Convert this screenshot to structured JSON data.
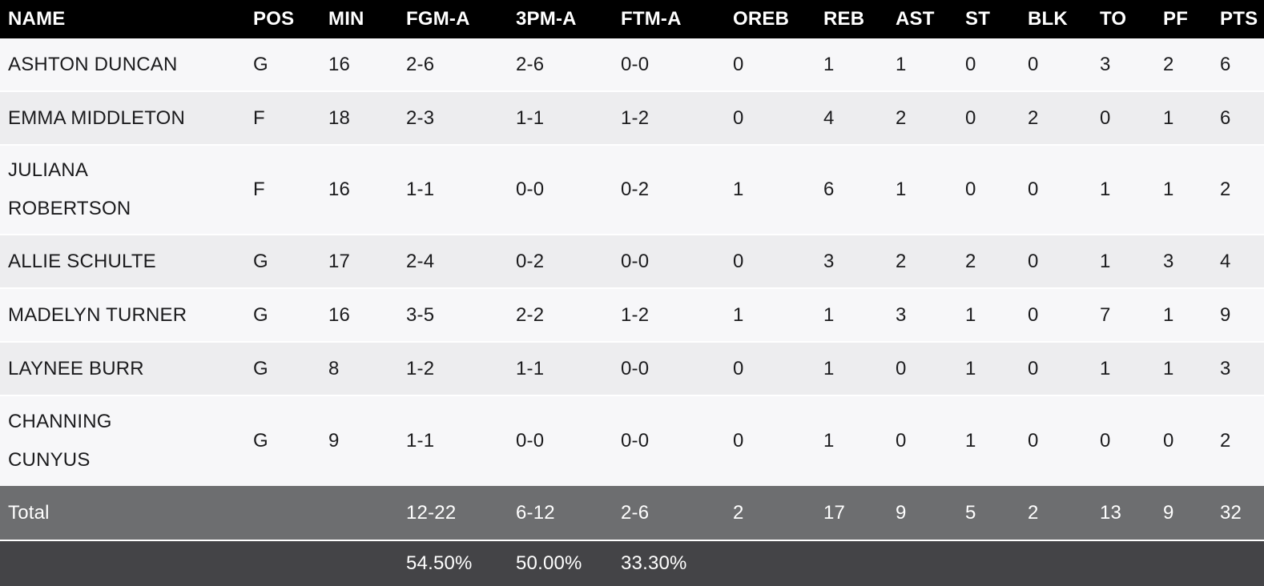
{
  "table": {
    "columns": [
      {
        "key": "name",
        "label": "NAME"
      },
      {
        "key": "pos",
        "label": "POS"
      },
      {
        "key": "min",
        "label": "MIN"
      },
      {
        "key": "fgm_a",
        "label": "FGM-A"
      },
      {
        "key": "pm3_a",
        "label": "3PM-A"
      },
      {
        "key": "ftm_a",
        "label": "FTM-A"
      },
      {
        "key": "oreb",
        "label": "OREB"
      },
      {
        "key": "reb",
        "label": "REB"
      },
      {
        "key": "ast",
        "label": "AST"
      },
      {
        "key": "st",
        "label": "ST"
      },
      {
        "key": "blk",
        "label": "BLK"
      },
      {
        "key": "to",
        "label": "TO"
      },
      {
        "key": "pf",
        "label": "PF"
      },
      {
        "key": "pts",
        "label": "PTS"
      }
    ],
    "players": [
      {
        "name": "ASHTON DUNCAN",
        "pos": "G",
        "min": "16",
        "fgm_a": "2-6",
        "pm3_a": "2-6",
        "ftm_a": "0-0",
        "oreb": "0",
        "reb": "1",
        "ast": "1",
        "st": "0",
        "blk": "0",
        "to": "3",
        "pf": "2",
        "pts": "6"
      },
      {
        "name": "EMMA MIDDLETON",
        "pos": "F",
        "min": "18",
        "fgm_a": "2-3",
        "pm3_a": "1-1",
        "ftm_a": "1-2",
        "oreb": "0",
        "reb": "4",
        "ast": "2",
        "st": "0",
        "blk": "2",
        "to": "0",
        "pf": "1",
        "pts": "6"
      },
      {
        "name": "JULIANA\nROBERTSON",
        "pos": "F",
        "min": "16",
        "fgm_a": "1-1",
        "pm3_a": "0-0",
        "ftm_a": "0-2",
        "oreb": "1",
        "reb": "6",
        "ast": "1",
        "st": "0",
        "blk": "0",
        "to": "1",
        "pf": "1",
        "pts": "2"
      },
      {
        "name": "ALLIE SCHULTE",
        "pos": "G",
        "min": "17",
        "fgm_a": "2-4",
        "pm3_a": "0-2",
        "ftm_a": "0-0",
        "oreb": "0",
        "reb": "3",
        "ast": "2",
        "st": "2",
        "blk": "0",
        "to": "1",
        "pf": "3",
        "pts": "4"
      },
      {
        "name": "MADELYN TURNER",
        "pos": "G",
        "min": "16",
        "fgm_a": "3-5",
        "pm3_a": "2-2",
        "ftm_a": "1-2",
        "oreb": "1",
        "reb": "1",
        "ast": "3",
        "st": "1",
        "blk": "0",
        "to": "7",
        "pf": "1",
        "pts": "9"
      },
      {
        "name": "LAYNEE BURR",
        "pos": "G",
        "min": "8",
        "fgm_a": "1-2",
        "pm3_a": "1-1",
        "ftm_a": "0-0",
        "oreb": "0",
        "reb": "1",
        "ast": "0",
        "st": "1",
        "blk": "0",
        "to": "1",
        "pf": "1",
        "pts": "3"
      },
      {
        "name": "CHANNING\nCUNYUS",
        "pos": "G",
        "min": "9",
        "fgm_a": "1-1",
        "pm3_a": "0-0",
        "ftm_a": "0-0",
        "oreb": "0",
        "reb": "1",
        "ast": "0",
        "st": "1",
        "blk": "0",
        "to": "0",
        "pf": "0",
        "pts": "2"
      }
    ],
    "total": {
      "label": "Total",
      "fgm_a": "12-22",
      "pm3_a": "6-12",
      "ftm_a": "2-6",
      "oreb": "2",
      "reb": "17",
      "ast": "9",
      "st": "5",
      "blk": "2",
      "to": "13",
      "pf": "9",
      "pts": "32"
    },
    "percentages": {
      "fgm_a": "54.50%",
      "pm3_a": "50.00%",
      "ftm_a": "33.30%"
    }
  },
  "colors": {
    "header_bg": "#000000",
    "header_text": "#ffffff",
    "row_light": "#f7f7f9",
    "row_dark": "#ededef",
    "total_bg": "#6d6e70",
    "pct_bg": "#444447",
    "body_text": "#1b1b1d"
  }
}
